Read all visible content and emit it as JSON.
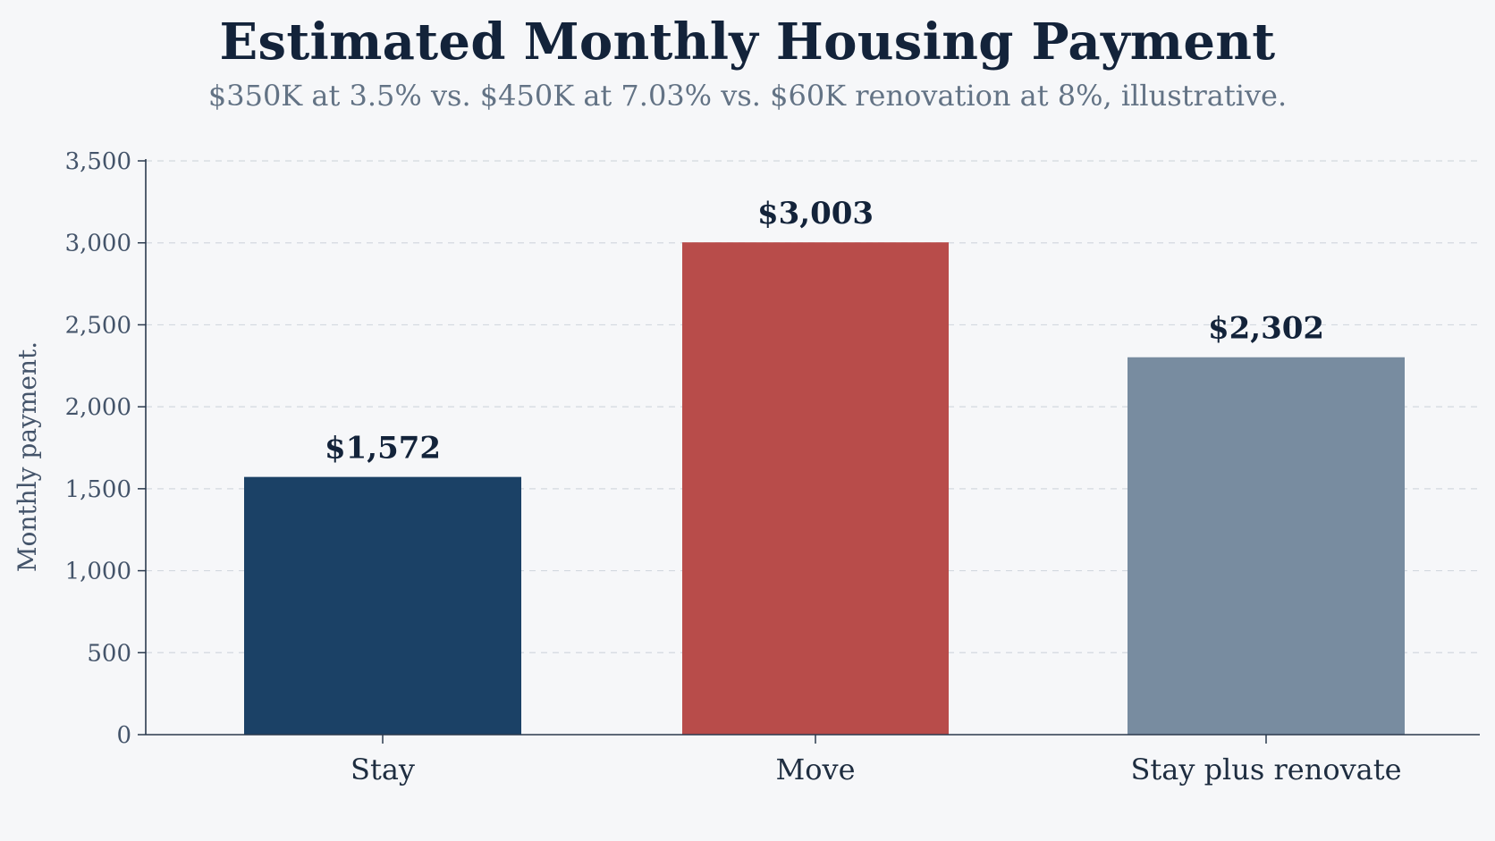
{
  "chart_data": {
    "type": "bar",
    "title": "Estimated Monthly Housing Payment",
    "subtitle": "$350K at 3.5% vs. $450K at 7.03% vs. $60K renovation at 8%, illustrative.",
    "xlabel": "",
    "ylabel": "Monthly payment.",
    "categories": [
      "Stay",
      "Move",
      "Stay plus renovate"
    ],
    "values": [
      1572,
      3003,
      2302
    ],
    "value_labels": [
      "$1,572",
      "$3,003",
      "$2,302"
    ],
    "colors": [
      "#1b4166",
      "#b84c4a",
      "#788ca0"
    ],
    "ylim": [
      0,
      3500
    ],
    "yticks": [
      0,
      500,
      1000,
      1500,
      2000,
      2500,
      3000,
      3500
    ],
    "ytick_labels": [
      "0",
      "500",
      "1,000",
      "1,500",
      "2,000",
      "2,500",
      "3,000",
      "3,500"
    ],
    "grid": true,
    "legend": "none"
  }
}
